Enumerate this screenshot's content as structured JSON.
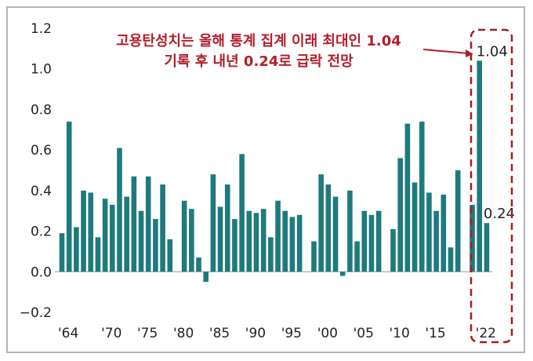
{
  "chart_data": {
    "type": "bar",
    "ylim": [
      -0.2,
      1.2
    ],
    "yticks": [
      1.2,
      1.0,
      0.8,
      0.6,
      0.4,
      0.2,
      0.0,
      -0.2
    ],
    "ytick_labels": [
      "1.2",
      "1.0",
      "0.8",
      "0.6",
      "0.4",
      "0.2",
      "0.0",
      "−0.2"
    ],
    "xtick_labels": [
      {
        "label": "'64",
        "year": 1964
      },
      {
        "label": "'70",
        "year": 1970
      },
      {
        "label": "'75",
        "year": 1975
      },
      {
        "label": "'80",
        "year": 1980
      },
      {
        "label": "'85",
        "year": 1985
      },
      {
        "label": "'90",
        "year": 1990
      },
      {
        "label": "'95",
        "year": 1995
      },
      {
        "label": "'00",
        "year": 2000
      },
      {
        "label": "'05",
        "year": 2005
      },
      {
        "label": "'10",
        "year": 2010
      },
      {
        "label": "'15",
        "year": 2015
      },
      {
        "label": "'22",
        "year": 2022
      }
    ],
    "bar_color": "#1e7a7c",
    "series": [
      {
        "name": "고용탄성치",
        "data": [
          {
            "year": 1964,
            "value": 0.19
          },
          {
            "year": 1965,
            "value": 0.74
          },
          {
            "year": 1966,
            "value": 0.22
          },
          {
            "year": 1967,
            "value": 0.4
          },
          {
            "year": 1968,
            "value": 0.39
          },
          {
            "year": 1969,
            "value": 0.17
          },
          {
            "year": 1970,
            "value": 0.36
          },
          {
            "year": 1971,
            "value": 0.33
          },
          {
            "year": 1972,
            "value": 0.61
          },
          {
            "year": 1973,
            "value": 0.37
          },
          {
            "year": 1974,
            "value": 0.47
          },
          {
            "year": 1975,
            "value": 0.3
          },
          {
            "year": 1976,
            "value": 0.47
          },
          {
            "year": 1977,
            "value": 0.26
          },
          {
            "year": 1978,
            "value": 0.43
          },
          {
            "year": 1979,
            "value": 0.16
          },
          {
            "year": 1981,
            "value": 0.35
          },
          {
            "year": 1982,
            "value": 0.31
          },
          {
            "year": 1983,
            "value": 0.07
          },
          {
            "year": 1984,
            "value": -0.05
          },
          {
            "year": 1985,
            "value": 0.48
          },
          {
            "year": 1986,
            "value": 0.32
          },
          {
            "year": 1987,
            "value": 0.43
          },
          {
            "year": 1988,
            "value": 0.26
          },
          {
            "year": 1989,
            "value": 0.58
          },
          {
            "year": 1990,
            "value": 0.3
          },
          {
            "year": 1991,
            "value": 0.29
          },
          {
            "year": 1992,
            "value": 0.31
          },
          {
            "year": 1993,
            "value": 0.17
          },
          {
            "year": 1994,
            "value": 0.35
          },
          {
            "year": 1995,
            "value": 0.3
          },
          {
            "year": 1996,
            "value": 0.27
          },
          {
            "year": 1997,
            "value": 0.28
          },
          {
            "year": 1999,
            "value": 0.15
          },
          {
            "year": 2000,
            "value": 0.48
          },
          {
            "year": 2001,
            "value": 0.43
          },
          {
            "year": 2002,
            "value": 0.37
          },
          {
            "year": 2003,
            "value": -0.02
          },
          {
            "year": 2004,
            "value": 0.4
          },
          {
            "year": 2005,
            "value": 0.15
          },
          {
            "year": 2006,
            "value": 0.3
          },
          {
            "year": 2007,
            "value": 0.28
          },
          {
            "year": 2008,
            "value": 0.3
          },
          {
            "year": 2010,
            "value": 0.21
          },
          {
            "year": 2011,
            "value": 0.56
          },
          {
            "year": 2012,
            "value": 0.73
          },
          {
            "year": 2013,
            "value": 0.44
          },
          {
            "year": 2014,
            "value": 0.74
          },
          {
            "year": 2015,
            "value": 0.39
          },
          {
            "year": 2016,
            "value": 0.3
          },
          {
            "year": 2017,
            "value": 0.38
          },
          {
            "year": 2018,
            "value": 0.12
          },
          {
            "year": 2019,
            "value": 0.5
          },
          {
            "year": 2021,
            "value": 0.33
          },
          {
            "year": 2022,
            "value": 1.04
          },
          {
            "year": 2023,
            "value": 0.24
          }
        ]
      }
    ],
    "data_labels": [
      {
        "year": 2022,
        "text": "1.04"
      },
      {
        "year": 2023,
        "text": "0.24"
      }
    ],
    "annotation": {
      "lines": [
        "고용탄성치는 올해 통계 집계 이래 최대인 1.04",
        "기록 후 내년 0.24로 급락 전망"
      ],
      "color": "#b11f2a"
    },
    "highlight_box_color": "#a51d22"
  }
}
